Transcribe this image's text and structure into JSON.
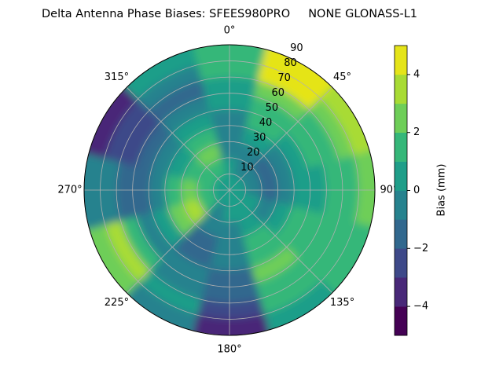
{
  "chart_data": {
    "type": "polar-contour",
    "title": "Delta Antenna Phase Biases: SFEES980PRO     NONE GLONASS-L1",
    "azimuth": [
      0,
      30,
      60,
      90,
      120,
      150,
      180,
      210,
      240,
      270,
      300,
      330
    ],
    "radius": [
      5,
      15,
      25,
      35,
      45,
      55,
      65,
      75,
      85
    ],
    "z": [
      [
        0,
        0,
        -1,
        -1,
        -1,
        0,
        0,
        1,
        1
      ],
      [
        0,
        -1,
        -1,
        0,
        1,
        1,
        2,
        4,
        4
      ],
      [
        0,
        -1,
        -2,
        -1,
        0,
        1,
        1,
        2,
        3
      ],
      [
        0,
        -1,
        -2,
        -1,
        0,
        0,
        1,
        1,
        2
      ],
      [
        0,
        0,
        -1,
        0,
        1,
        1,
        1,
        1,
        1
      ],
      [
        0,
        0,
        0,
        1,
        1,
        2,
        1,
        1,
        0
      ],
      [
        0,
        0,
        -1,
        -1,
        -1,
        -2,
        -2,
        -3,
        -4
      ],
      [
        0,
        -1,
        -1,
        -2,
        -2,
        -1,
        -1,
        0,
        -1
      ],
      [
        0,
        1,
        3,
        2,
        0,
        -1,
        1,
        3,
        2
      ],
      [
        0,
        1,
        2,
        1,
        -1,
        -2,
        -2,
        -1,
        -1
      ],
      [
        0,
        1,
        1,
        0,
        -1,
        -2,
        -3,
        -3,
        -4
      ],
      [
        0,
        1,
        2,
        1,
        0,
        -1,
        -2,
        -1,
        0
      ]
    ],
    "rlim": [
      0,
      90
    ],
    "rticks": [
      10,
      20,
      30,
      40,
      50,
      60,
      70,
      80,
      90
    ],
    "thetaticks": [
      {
        "value": 0,
        "label": "0°"
      },
      {
        "value": 45,
        "label": "45°"
      },
      {
        "value": 90,
        "label": "90°"
      },
      {
        "value": 135,
        "label": "135°"
      },
      {
        "value": 180,
        "label": "180°"
      },
      {
        "value": 225,
        "label": "225°"
      },
      {
        "value": 270,
        "label": "270°"
      },
      {
        "value": 315,
        "label": "315°"
      }
    ],
    "grid": true,
    "colorbar": {
      "label": "Bias (mm)",
      "clim": [
        -5,
        5
      ],
      "colors": [
        "#440154",
        "#482878",
        "#3e4989",
        "#31688e",
        "#26828e",
        "#1f9e89",
        "#35b779",
        "#6ece58",
        "#a8db34",
        "#e5e419"
      ],
      "ticks": [
        {
          "value": -4,
          "label": "−4"
        },
        {
          "value": -2,
          "label": "−2"
        },
        0,
        2,
        4
      ]
    }
  }
}
